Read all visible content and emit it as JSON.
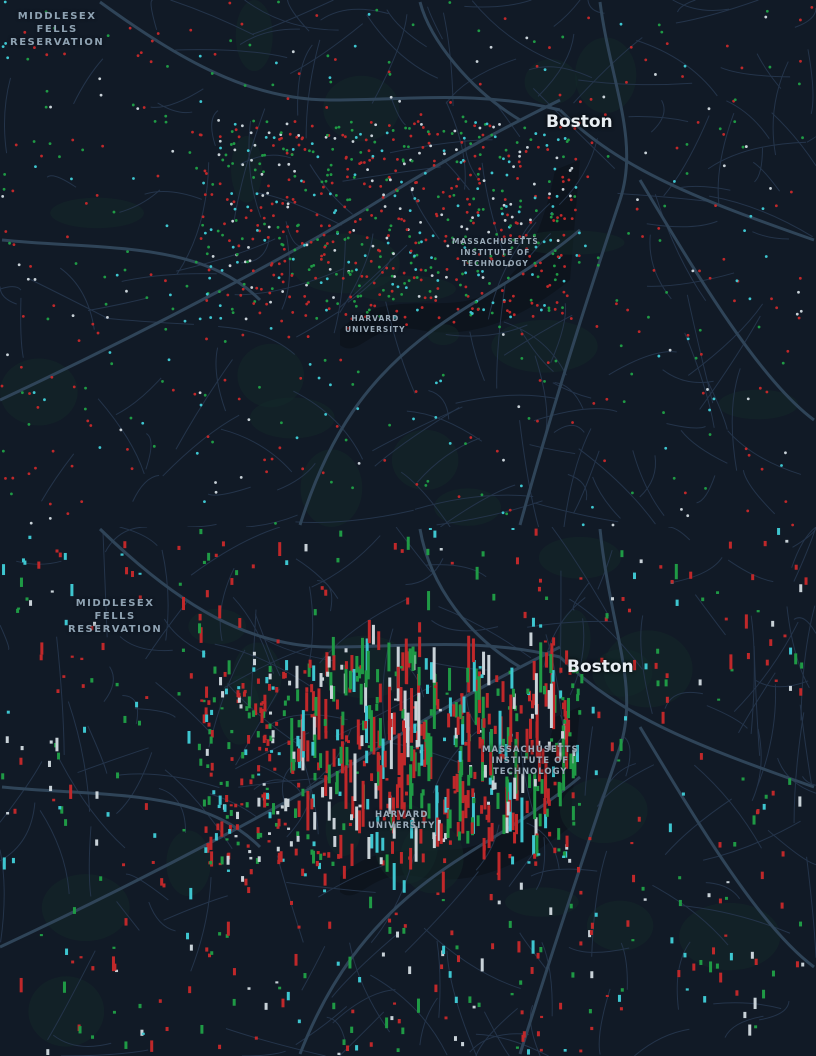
{
  "colors": {
    "background": "#111a26",
    "land": "#17222e",
    "roads": "#2f4458",
    "water": "#0d141d",
    "red": "#c0282a",
    "green": "#1f9a45",
    "cyan": "#3ec6d0",
    "white": "#c9d2d8"
  },
  "panels": [
    {
      "view": "2d-points",
      "labels": {
        "park": "MIDDLESEX\nFELLS\nRESERVATION",
        "city": "Boston",
        "mit": "MASSACHUSETTS\nINSTITUTE OF\nTECHNOLOGY",
        "harvard": "HARVARD\nUNIVERSITY"
      }
    },
    {
      "view": "3d-columns",
      "labels": {
        "park": "MIDDLESEX\nFELLS\nRESERVATION",
        "city": "Boston",
        "mit": "MASSACHUSETTS\nINSTITUTE OF\nTECHNOLOGY",
        "harvard": "HARVARD\nUNIVERSITY"
      }
    }
  ]
}
